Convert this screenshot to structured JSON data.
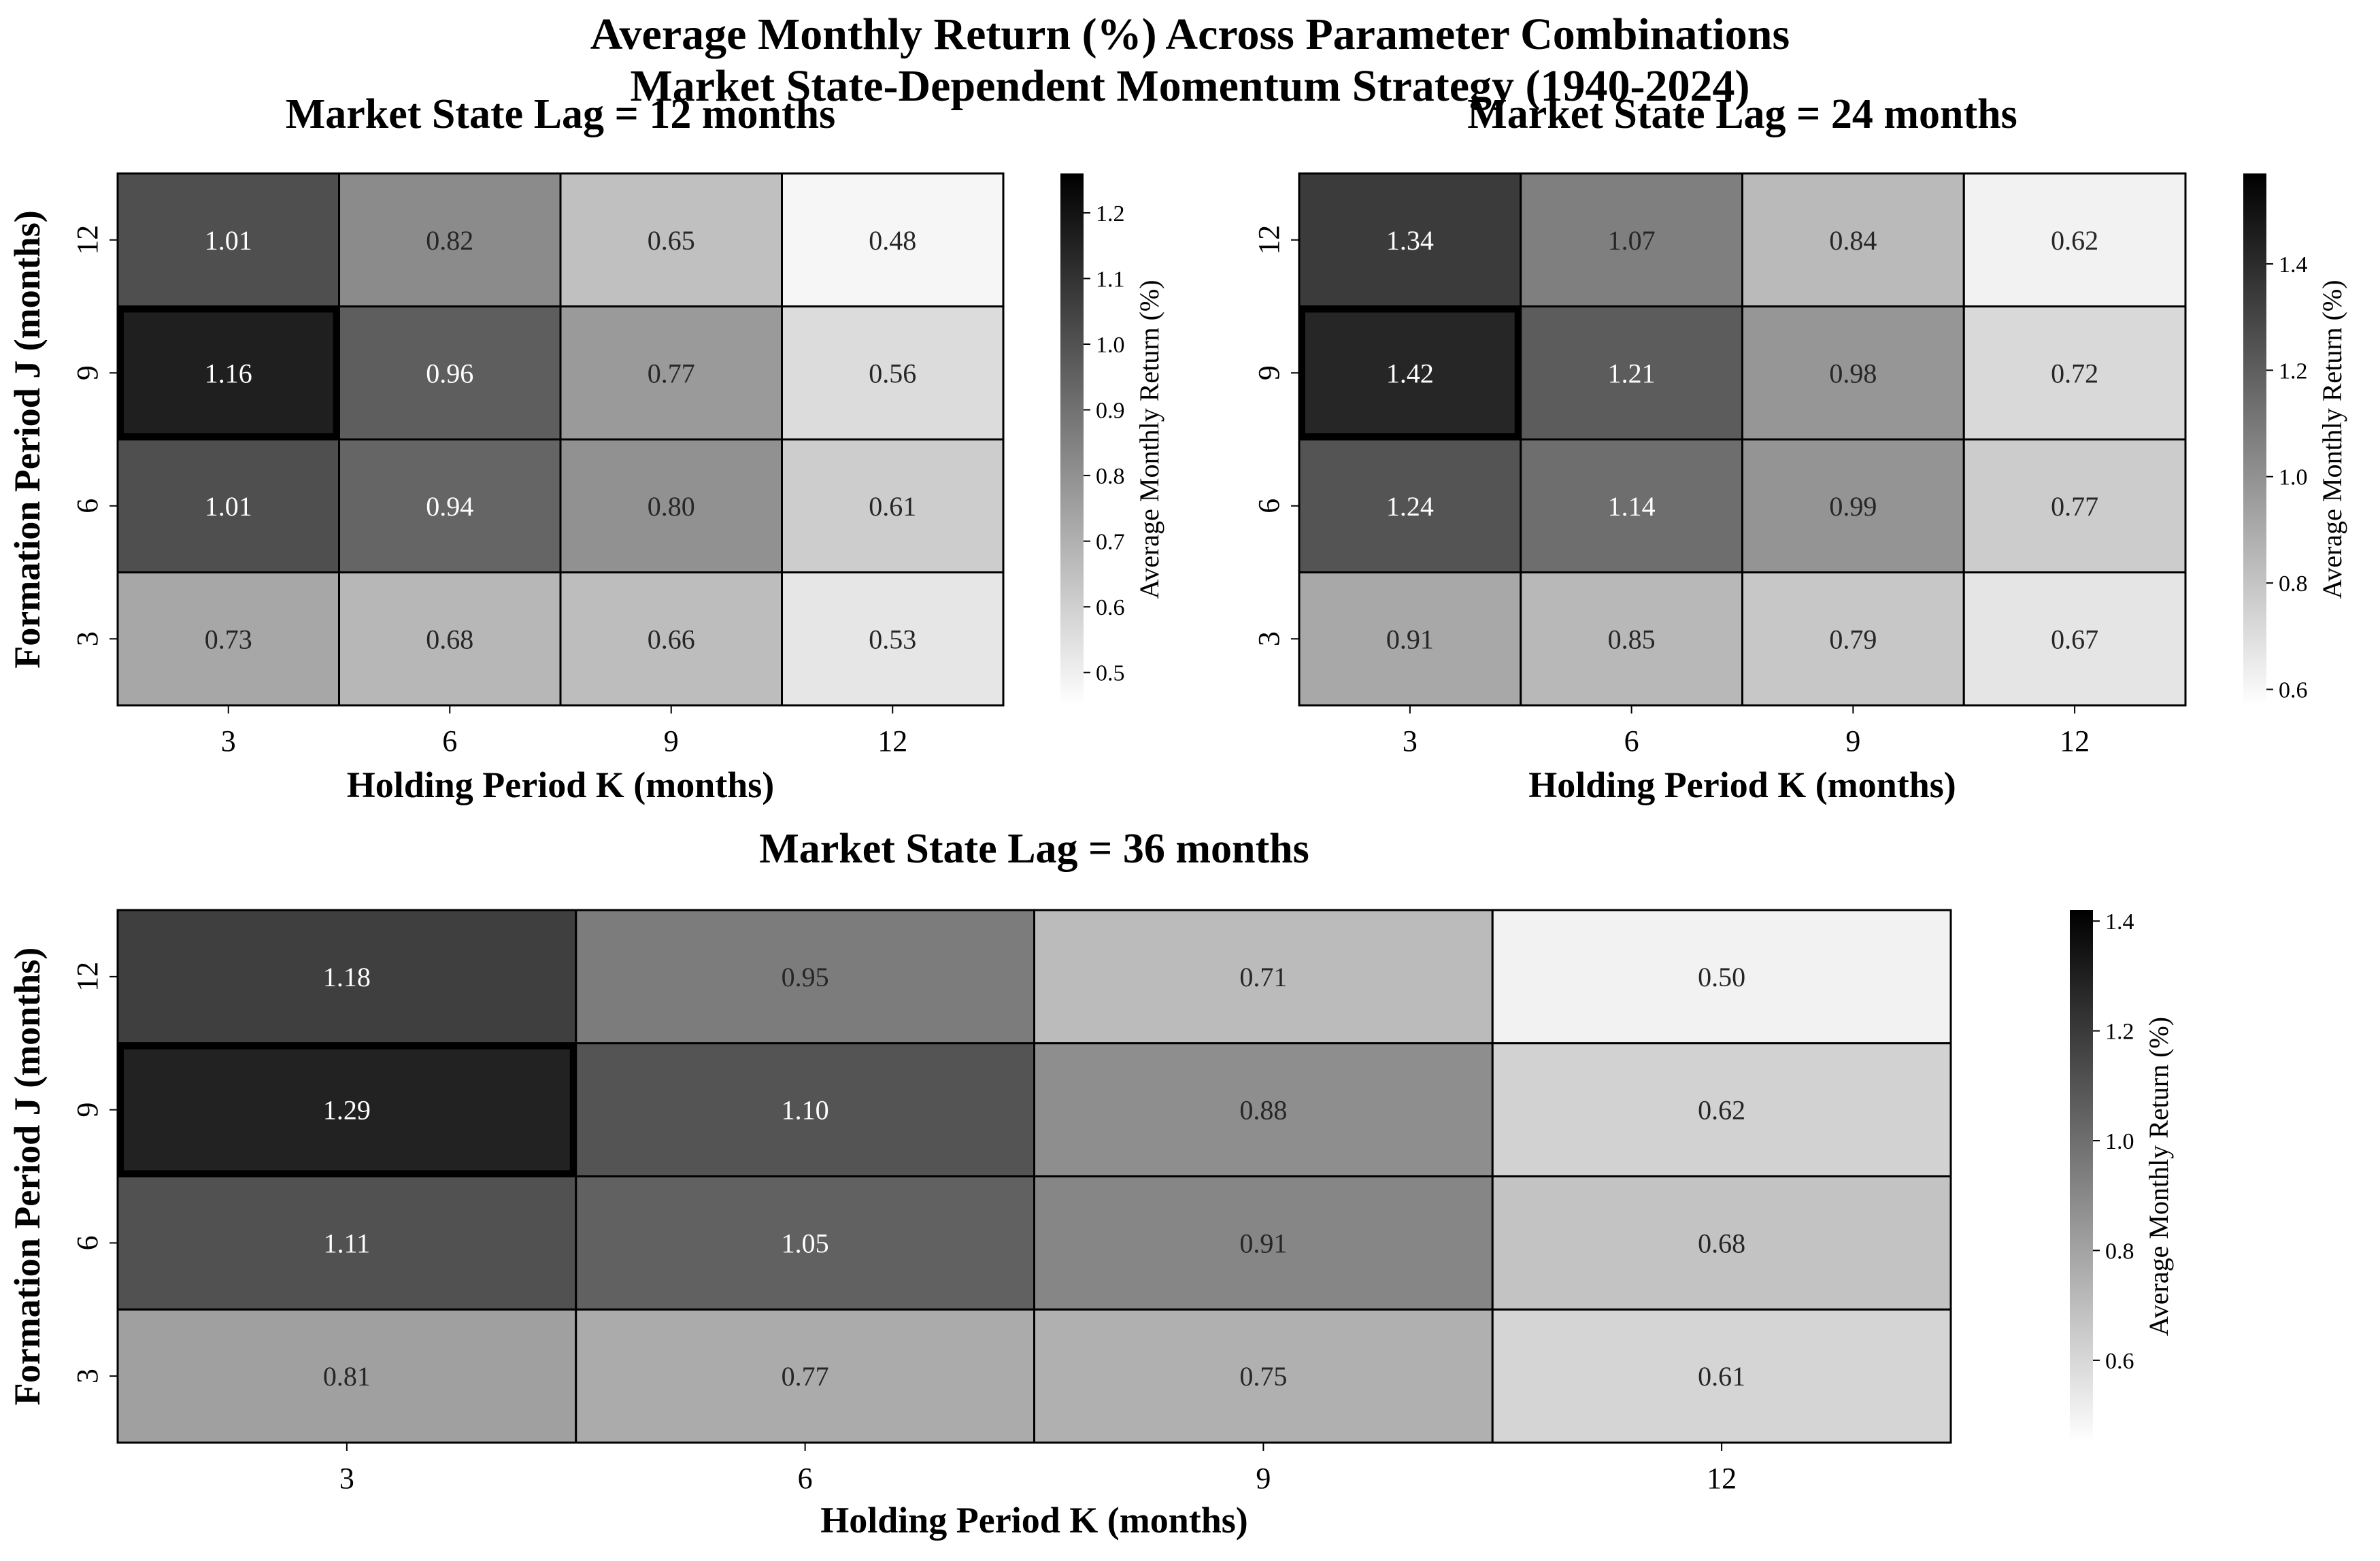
{
  "figure": {
    "title_line1": "Average Monthly Return (%) Across Parameter Combinations",
    "title_line2": "Market State-Dependent Momentum Strategy (1940-2024)"
  },
  "chart_data": [
    {
      "type": "heatmap",
      "title": "Market State Lag = 12 months",
      "xlabel": "Holding Period K (months)",
      "ylabel": "Formation Period J (months)",
      "x_categories": [
        "3",
        "6",
        "9",
        "12"
      ],
      "y_categories": [
        "12",
        "9",
        "6",
        "3"
      ],
      "values": [
        [
          1.01,
          0.82,
          0.65,
          0.48
        ],
        [
          1.16,
          0.96,
          0.77,
          0.56
        ],
        [
          1.01,
          0.94,
          0.8,
          0.61
        ],
        [
          0.73,
          0.68,
          0.66,
          0.53
        ]
      ],
      "highlight": {
        "row": "9",
        "col": "3"
      },
      "colorbar": {
        "label": "Average Monthly Return (%)",
        "range": [
          0.45,
          1.26
        ],
        "ticks": [
          0.5,
          0.6,
          0.7,
          0.8,
          0.9,
          1.0,
          1.1,
          1.2
        ]
      },
      "colormap": "Greys"
    },
    {
      "type": "heatmap",
      "title": "Market State Lag = 24 months",
      "xlabel": "Holding Period K (months)",
      "ylabel": "",
      "x_categories": [
        "3",
        "6",
        "9",
        "12"
      ],
      "y_categories": [
        "12",
        "9",
        "6",
        "3"
      ],
      "values": [
        [
          1.34,
          1.07,
          0.84,
          0.62
        ],
        [
          1.42,
          1.21,
          0.98,
          0.72
        ],
        [
          1.24,
          1.14,
          0.99,
          0.77
        ],
        [
          0.91,
          0.85,
          0.79,
          0.67
        ]
      ],
      "highlight": {
        "row": "9",
        "col": "3"
      },
      "colorbar": {
        "label": "Average Monthly Return (%)",
        "range": [
          0.57,
          1.57
        ],
        "ticks": [
          0.6,
          0.8,
          1.0,
          1.2,
          1.4
        ]
      },
      "colormap": "Greys"
    },
    {
      "type": "heatmap",
      "title": "Market State Lag = 36 months",
      "xlabel": "Holding Period K (months)",
      "ylabel": "Formation Period J (months)",
      "x_categories": [
        "3",
        "6",
        "9",
        "12"
      ],
      "y_categories": [
        "12",
        "9",
        "6",
        "3"
      ],
      "values": [
        [
          1.18,
          0.95,
          0.71,
          0.5
        ],
        [
          1.29,
          1.1,
          0.88,
          0.62
        ],
        [
          1.11,
          1.05,
          0.91,
          0.68
        ],
        [
          0.81,
          0.77,
          0.75,
          0.61
        ]
      ],
      "highlight": {
        "row": "9",
        "col": "3"
      },
      "colorbar": {
        "label": "Average Monthly Return (%)",
        "range": [
          0.45,
          1.42
        ],
        "ticks": [
          0.6,
          0.8,
          1.0,
          1.2,
          1.4
        ]
      },
      "colormap": "Greys"
    }
  ]
}
